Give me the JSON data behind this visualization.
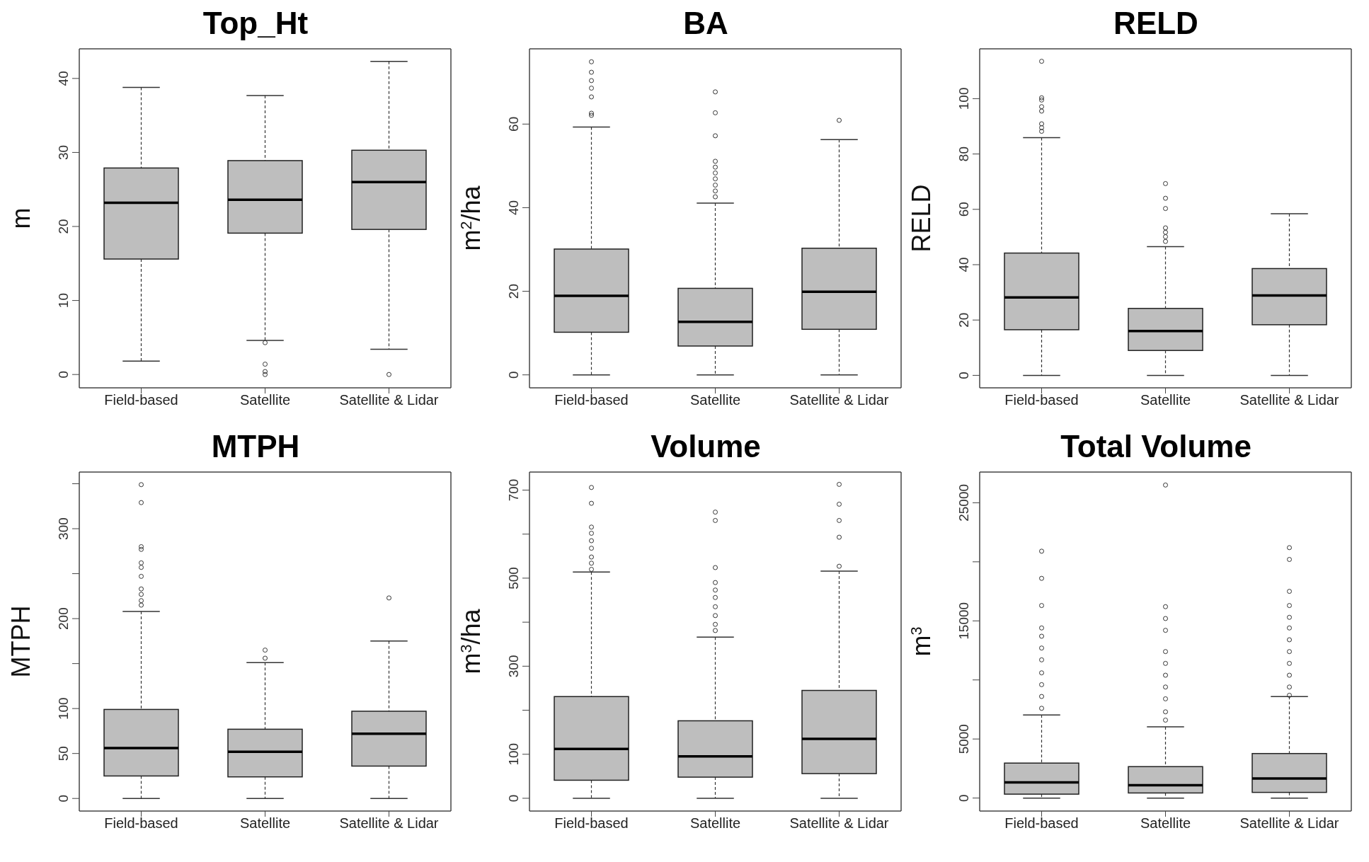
{
  "chart_data": [
    {
      "type": "box",
      "title": "Top_Ht",
      "ylabel": "m",
      "color": "#bebebe",
      "categories": [
        "Field-based",
        "Satellite",
        "Satellite & Lidar"
      ],
      "ylim": [
        -1.8,
        44
      ],
      "yticks": [
        0,
        10,
        20,
        30,
        40
      ],
      "boxes": [
        {
          "low": 1.8,
          "q1": 15.6,
          "median": 23.2,
          "q3": 27.9,
          "high": 38.8
        },
        {
          "low": 4.6,
          "q1": 19.1,
          "median": 23.6,
          "q3": 28.9,
          "high": 37.7,
          "outliers": [
            4.3,
            1.4,
            0.4,
            0
          ]
        },
        {
          "low": 3.4,
          "q1": 19.6,
          "median": 26.0,
          "q3": 30.3,
          "high": 42.3,
          "outliers": [
            0
          ]
        }
      ]
    },
    {
      "type": "box",
      "title": "BA",
      "ylabel": "m$^{2}$/ha",
      "color": "#bebebe",
      "categories": [
        "Field-based",
        "Satellite",
        "Satellite & Lidar"
      ],
      "ylim": [
        -3.1,
        78
      ],
      "yticks": [
        0,
        20,
        40,
        60
      ],
      "boxes": [
        {
          "low": 0,
          "q1": 10.2,
          "median": 18.9,
          "q3": 30.1,
          "high": 59.3,
          "outliers": [
            74.9,
            72.4,
            70.4,
            68.6,
            66.5,
            62.6,
            62.1
          ]
        },
        {
          "low": 0,
          "q1": 6.9,
          "median": 12.7,
          "q3": 20.7,
          "high": 41.1,
          "outliers": [
            67.7,
            62.7,
            57.2,
            51.1,
            49.7,
            48.3,
            46.9,
            45.4,
            44.0,
            42.6
          ]
        },
        {
          "low": 0,
          "q1": 10.9,
          "median": 19.9,
          "q3": 30.3,
          "high": 56.3,
          "outliers": [
            60.9
          ]
        }
      ]
    },
    {
      "type": "box",
      "title": "RELD",
      "ylabel": "RELD",
      "color": "#bebebe",
      "categories": [
        "Field-based",
        "Satellite",
        "Satellite & Lidar"
      ],
      "ylim": [
        -4.5,
        118
      ],
      "yticks": [
        0,
        20,
        40,
        60,
        80,
        100
      ],
      "boxes": [
        {
          "low": 0,
          "q1": 16.5,
          "median": 28.2,
          "q3": 44.2,
          "high": 85.9,
          "outliers": [
            113.5,
            100.3,
            99.5,
            97.1,
            95.5,
            90.9,
            89.5,
            88.2
          ]
        },
        {
          "low": 0,
          "q1": 9.0,
          "median": 16.0,
          "q3": 24.2,
          "high": 46.5,
          "outliers": [
            69.3,
            64.0,
            60.3,
            53.3,
            51.7,
            50.1,
            48.4
          ]
        },
        {
          "low": 0,
          "q1": 18.3,
          "median": 28.9,
          "q3": 38.6,
          "high": 58.4
        }
      ]
    },
    {
      "type": "box",
      "title": "MTPH",
      "ylabel": "MTPH",
      "color": "#bebebe",
      "categories": [
        "Field-based",
        "Satellite",
        "Satellite & Lidar"
      ],
      "ylim": [
        -14,
        363
      ],
      "yticks": [
        0,
        50,
        100,
        {
          "value": 150,
          "label": null
        },
        200,
        {
          "value": 250,
          "label": null
        },
        300,
        {
          "value": 350,
          "label": null
        }
      ],
      "boxes": [
        {
          "low": 0,
          "q1": 25,
          "median": 56,
          "q3": 99,
          "high": 208,
          "outliers": [
            349,
            329,
            280,
            277,
            262,
            257,
            247,
            233,
            227,
            220,
            215
          ]
        },
        {
          "low": 0,
          "q1": 24,
          "median": 52,
          "q3": 77,
          "high": 151,
          "outliers": [
            165,
            156
          ]
        },
        {
          "low": 0,
          "q1": 36,
          "median": 72,
          "q3": 97,
          "high": 175,
          "outliers": [
            223
          ]
        }
      ]
    },
    {
      "type": "box",
      "title": "Volume",
      "ylabel": "m$^{3}$/ha",
      "color": "#bebebe",
      "categories": [
        "Field-based",
        "Satellite",
        "Satellite & Lidar"
      ],
      "ylim": [
        -29,
        741
      ],
      "yticks": [
        0,
        100,
        {
          "value": 200,
          "label": null
        },
        300,
        {
          "value": 400,
          "label": null
        },
        500,
        {
          "value": 600,
          "label": null
        },
        700
      ],
      "boxes": [
        {
          "low": 0,
          "q1": 41,
          "median": 112,
          "q3": 231,
          "high": 514,
          "outliers": [
            706,
            670,
            616,
            602,
            585,
            568,
            548,
            534,
            520
          ]
        },
        {
          "low": 0,
          "q1": 48,
          "median": 95,
          "q3": 176,
          "high": 366,
          "outliers": [
            650,
            631,
            524,
            490,
            473,
            456,
            435,
            415,
            395,
            381
          ]
        },
        {
          "low": 0,
          "q1": 56,
          "median": 135,
          "q3": 245,
          "high": 516,
          "outliers": [
            713,
            668,
            631,
            593,
            527
          ]
        }
      ]
    },
    {
      "type": "box",
      "title": "Total Volume",
      "ylabel": "m$^{3}$",
      "color": "#bebebe",
      "categories": [
        "Field-based",
        "Satellite",
        "Satellite & Lidar"
      ],
      "ylim": [
        -1100,
        27600
      ],
      "yticks": [
        0,
        5000,
        {
          "value": 10000,
          "label": null
        },
        15000,
        {
          "value": 20000,
          "label": null
        },
        25000
      ],
      "boxes": [
        {
          "low": 0,
          "q1": 330,
          "median": 1320,
          "q3": 2960,
          "high": 7040,
          "outliers": [
            20900,
            18600,
            16300,
            14400,
            13700,
            12700,
            11700,
            10600,
            9600,
            8600,
            7600
          ]
        },
        {
          "low": 0,
          "q1": 430,
          "median": 1090,
          "q3": 2660,
          "high": 6030,
          "outliers": [
            26500,
            16200,
            15200,
            14200,
            12400,
            11400,
            10400,
            9400,
            8400,
            7300,
            6600
          ]
        },
        {
          "low": 0,
          "q1": 480,
          "median": 1650,
          "q3": 3770,
          "high": 8590,
          "outliers": [
            21200,
            20200,
            17500,
            16300,
            15300,
            14400,
            13400,
            12400,
            11400,
            10400,
            9400,
            8700
          ]
        }
      ]
    }
  ]
}
